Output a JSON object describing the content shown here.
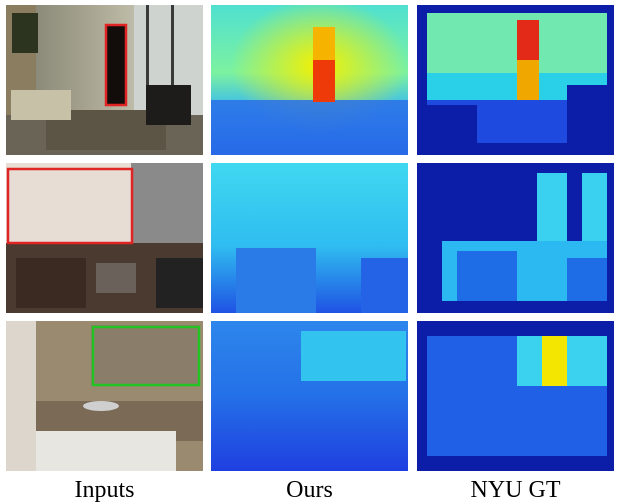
{
  "figure": {
    "column_captions": [
      "Inputs",
      "Ours",
      "NYU GT"
    ],
    "rows": [
      {
        "name": "row-1",
        "highlight_color": "#e02424"
      },
      {
        "name": "row-2",
        "highlight_color": "#e02424"
      },
      {
        "name": "row-3",
        "highlight_color": "#22c322"
      }
    ],
    "colors": {
      "depth_near": "#1f3fe0",
      "depth_mid": "#27c9f0",
      "depth_far_yellow": "#f3e600",
      "depth_far_red": "#e8280e",
      "gt_background": "#0c1ea8"
    }
  }
}
